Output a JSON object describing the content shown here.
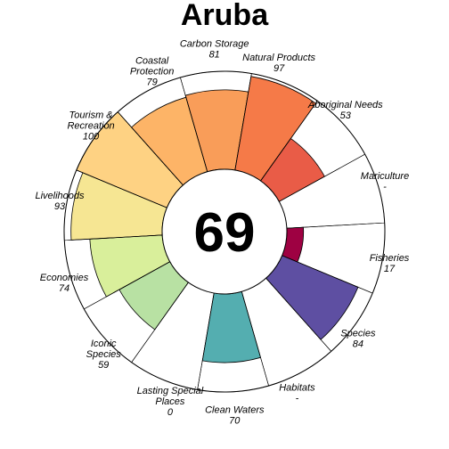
{
  "chart_data": {
    "type": "polar-bar",
    "title": "Aruba",
    "center_score": "69",
    "ylim": [
      0,
      100
    ],
    "categories": [
      {
        "name": "Carbon Storage",
        "score": "81",
        "value": 81,
        "color": "#f99d59"
      },
      {
        "name": "Natural Products",
        "score": "97",
        "value": 97,
        "color": "#f57a48"
      },
      {
        "name": "Aboriginal Needs",
        "score": "53",
        "value": 53,
        "color": "#e95c47"
      },
      {
        "name": "Mariculture",
        "score": "-",
        "value": null,
        "color": "#ffffff"
      },
      {
        "name": "Fisheries",
        "score": "17",
        "value": 17,
        "color": "#9e0142"
      },
      {
        "name": "Species",
        "score": "84",
        "value": 84,
        "color": "#5e4fa2"
      },
      {
        "name": "Habitats",
        "score": "-",
        "value": null,
        "color": "#ffffff"
      },
      {
        "name": "Clean Waters",
        "score": "70",
        "value": 70,
        "color": "#54aeb0"
      },
      {
        "name": "Lasting Special Places",
        "score": "0",
        "value": 0,
        "color": "#ffffff"
      },
      {
        "name": "Iconic Species",
        "score": "59",
        "value": 59,
        "color": "#b8e1a3"
      },
      {
        "name": "Economies",
        "score": "74",
        "value": 74,
        "color": "#d9ef9b"
      },
      {
        "name": "Livelihoods",
        "score": "93",
        "value": 93,
        "color": "#f6e693"
      },
      {
        "name": "Tourism & Recreation",
        "score": "100",
        "value": 100,
        "color": "#fed283"
      },
      {
        "name": "Coastal Protection",
        "score": "79",
        "value": 79,
        "color": "#fdb467"
      }
    ]
  }
}
